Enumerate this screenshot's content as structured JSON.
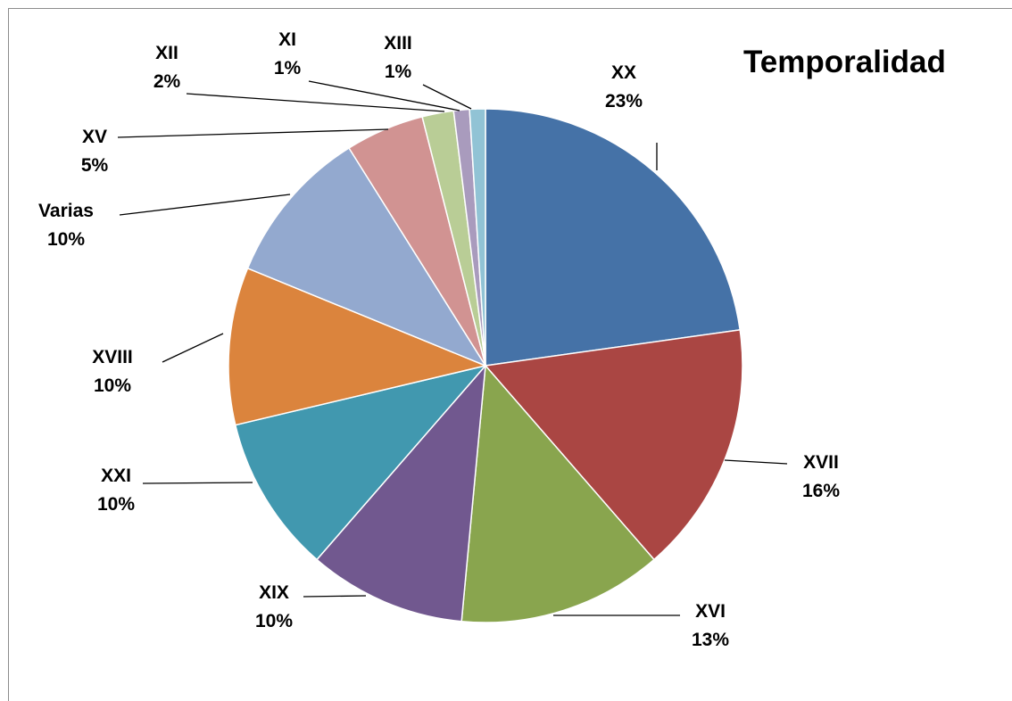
{
  "chart_data": {
    "type": "pie",
    "title": "Temporalidad",
    "start_angle_deg": 0,
    "direction": "clockwise",
    "slices": [
      {
        "label": "XX",
        "value": 23,
        "value_label": "23%",
        "color": "#4572A7"
      },
      {
        "label": "XVII",
        "value": 16,
        "value_label": "16%",
        "color": "#AA4643"
      },
      {
        "label": "XVI",
        "value": 13,
        "value_label": "13%",
        "color": "#89A54E"
      },
      {
        "label": "XIX",
        "value": 10,
        "value_label": "10%",
        "color": "#71588F"
      },
      {
        "label": "XXI",
        "value": 10,
        "value_label": "10%",
        "color": "#4198AF"
      },
      {
        "label": "XVIII",
        "value": 10,
        "value_label": "10%",
        "color": "#DB843D"
      },
      {
        "label": "Varias",
        "value": 10,
        "value_label": "10%",
        "color": "#93A9CF"
      },
      {
        "label": "XV",
        "value": 5,
        "value_label": "5%",
        "color": "#D19392"
      },
      {
        "label": "XII",
        "value": 2,
        "value_label": "2%",
        "color": "#B9CD96"
      },
      {
        "label": "XI",
        "value": 1,
        "value_label": "1%",
        "color": "#A99BBD"
      },
      {
        "label": "XIII",
        "value": 1,
        "value_label": "1%",
        "color": "#91C3D5"
      }
    ]
  }
}
